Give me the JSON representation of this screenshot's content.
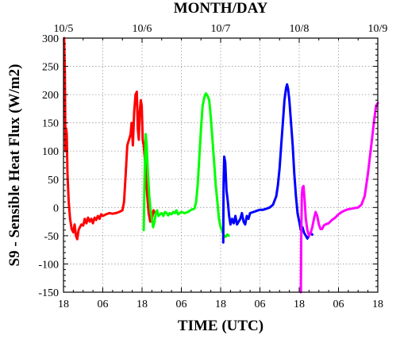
{
  "chart_data": {
    "type": "line",
    "title": "",
    "xlabel": "TIME (UTC)",
    "x2label": "MONTH/DAY",
    "ylabel": "S9 - Sensible Heat Flux (W/m2)",
    "xlim": [
      0,
      96
    ],
    "ylim": [
      -150,
      300
    ],
    "grid": true,
    "legend": "none",
    "y_ticks": [
      "-150",
      "-100",
      "-50",
      "0",
      "50",
      "100",
      "150",
      "200",
      "250",
      "300"
    ],
    "x_ticks": [
      {
        "x": 0,
        "label": "18"
      },
      {
        "x": 12,
        "label": "06"
      },
      {
        "x": 24,
        "label": "18"
      },
      {
        "x": 36,
        "label": "06"
      },
      {
        "x": 48,
        "label": "18"
      },
      {
        "x": 60,
        "label": "06"
      },
      {
        "x": 72,
        "label": "18"
      },
      {
        "x": 84,
        "label": "06"
      },
      {
        "x": 96,
        "label": "18"
      }
    ],
    "x2_ticks": [
      {
        "x": 0,
        "label": "10/5"
      },
      {
        "x": 24,
        "label": "10/6"
      },
      {
        "x": 48,
        "label": "10/7"
      },
      {
        "x": 72,
        "label": "10/8"
      },
      {
        "x": 96,
        "label": "10/9"
      }
    ],
    "series": [
      {
        "color": "#ff0000",
        "points": [
          [
            0.2,
            300
          ],
          [
            0.4,
            240
          ],
          [
            0.6,
            100
          ],
          [
            0.8,
            140
          ],
          [
            1.0,
            130
          ],
          [
            1.2,
            60
          ],
          [
            1.6,
            10
          ],
          [
            2.0,
            -20
          ],
          [
            2.5,
            -38
          ],
          [
            3.0,
            -44
          ],
          [
            3.4,
            -30
          ],
          [
            3.8,
            -50
          ],
          [
            4.2,
            -56
          ],
          [
            4.6,
            -40
          ],
          [
            5.0,
            -35
          ],
          [
            5.5,
            -30
          ],
          [
            6.0,
            -32
          ],
          [
            6.5,
            -20
          ],
          [
            7.0,
            -28
          ],
          [
            7.5,
            -18
          ],
          [
            8.0,
            -25
          ],
          [
            8.5,
            -20
          ],
          [
            9.0,
            -28
          ],
          [
            9.5,
            -18
          ],
          [
            10.0,
            -22
          ],
          [
            10.5,
            -15
          ],
          [
            11.0,
            -20
          ],
          [
            11.5,
            -12
          ],
          [
            12.0,
            -15
          ],
          [
            13.0,
            -12
          ],
          [
            14.0,
            -10
          ],
          [
            15.0,
            -11
          ],
          [
            16.0,
            -10
          ],
          [
            17.0,
            -8
          ],
          [
            18.0,
            -5
          ],
          [
            18.5,
            10
          ],
          [
            19.0,
            60
          ],
          [
            19.5,
            110
          ],
          [
            20.0,
            120
          ],
          [
            20.5,
            130
          ],
          [
            20.8,
            150
          ],
          [
            21.2,
            110
          ],
          [
            21.6,
            170
          ],
          [
            22.0,
            200
          ],
          [
            22.4,
            205
          ],
          [
            22.7,
            140
          ],
          [
            23.0,
            120
          ],
          [
            23.3,
            170
          ],
          [
            23.6,
            190
          ],
          [
            23.9,
            180
          ],
          [
            24.2,
            120
          ],
          [
            24.5,
            110
          ],
          [
            24.8,
            90
          ],
          [
            25.2,
            60
          ],
          [
            25.6,
            20
          ],
          [
            26.0,
            -10
          ],
          [
            26.5,
            -25
          ],
          [
            27.0,
            -20
          ],
          [
            27.5,
            -5
          ],
          [
            28.0,
            -10
          ],
          [
            28.5,
            -8
          ]
        ]
      },
      {
        "color": "#00ff00",
        "points": [
          [
            24.5,
            -40
          ],
          [
            24.8,
            60
          ],
          [
            25.1,
            130
          ],
          [
            25.4,
            110
          ],
          [
            25.8,
            60
          ],
          [
            26.2,
            20
          ],
          [
            26.6,
            -5
          ],
          [
            27.0,
            -20
          ],
          [
            27.4,
            -35
          ],
          [
            27.8,
            -25
          ],
          [
            28.2,
            -10
          ],
          [
            28.6,
            -5
          ],
          [
            29.0,
            -15
          ],
          [
            29.5,
            -12
          ],
          [
            30.0,
            -10
          ],
          [
            30.5,
            -15
          ],
          [
            31.0,
            -8
          ],
          [
            31.5,
            -10
          ],
          [
            32.0,
            -14
          ],
          [
            32.5,
            -10
          ],
          [
            33.0,
            -12
          ],
          [
            33.5,
            -8
          ],
          [
            34.0,
            -10
          ],
          [
            34.5,
            -5
          ],
          [
            35.0,
            -12
          ],
          [
            36.0,
            -8
          ],
          [
            37.0,
            -10
          ],
          [
            38.0,
            -8
          ],
          [
            39.0,
            -4
          ],
          [
            40.0,
            -2
          ],
          [
            40.5,
            10
          ],
          [
            41.0,
            40
          ],
          [
            41.5,
            90
          ],
          [
            42.0,
            140
          ],
          [
            42.5,
            180
          ],
          [
            43.0,
            195
          ],
          [
            43.5,
            202
          ],
          [
            44.0,
            198
          ],
          [
            44.5,
            190
          ],
          [
            45.0,
            160
          ],
          [
            45.5,
            120
          ],
          [
            46.0,
            80
          ],
          [
            46.5,
            40
          ],
          [
            47.0,
            10
          ],
          [
            47.5,
            -20
          ],
          [
            48.0,
            -35
          ],
          [
            48.5,
            -42
          ],
          [
            49.0,
            -50
          ],
          [
            49.5,
            -52
          ],
          [
            50.0,
            -48
          ],
          [
            50.5,
            -50
          ]
        ]
      },
      {
        "color": "#0000ff",
        "points": [
          [
            48.8,
            -62
          ],
          [
            48.9,
            40
          ],
          [
            49.1,
            90
          ],
          [
            49.4,
            80
          ],
          [
            49.8,
            30
          ],
          [
            50.2,
            10
          ],
          [
            50.6,
            -15
          ],
          [
            51.0,
            -30
          ],
          [
            51.5,
            -20
          ],
          [
            52.0,
            -28
          ],
          [
            52.5,
            -15
          ],
          [
            53.0,
            -30
          ],
          [
            53.5,
            -25
          ],
          [
            54.0,
            -20
          ],
          [
            54.5,
            -10
          ],
          [
            55.0,
            -25
          ],
          [
            55.5,
            -30
          ],
          [
            56.0,
            -15
          ],
          [
            56.5,
            -20
          ],
          [
            57.0,
            -10
          ],
          [
            58.0,
            -8
          ],
          [
            59.0,
            -6
          ],
          [
            60.0,
            -4
          ],
          [
            61.0,
            -4
          ],
          [
            62.0,
            -2
          ],
          [
            63.0,
            0
          ],
          [
            64.0,
            5
          ],
          [
            65.0,
            20
          ],
          [
            65.5,
            40
          ],
          [
            66.0,
            70
          ],
          [
            66.5,
            110
          ],
          [
            67.0,
            150
          ],
          [
            67.5,
            190
          ],
          [
            68.0,
            212
          ],
          [
            68.3,
            218
          ],
          [
            68.6,
            210
          ],
          [
            69.0,
            190
          ],
          [
            69.5,
            150
          ],
          [
            70.0,
            110
          ],
          [
            70.5,
            60
          ],
          [
            71.0,
            20
          ],
          [
            71.5,
            -10
          ],
          [
            72.0,
            -25
          ],
          [
            72.5,
            -40
          ],
          [
            73.0,
            -35
          ],
          [
            73.5,
            -45
          ],
          [
            74.0,
            -50
          ],
          [
            74.5,
            -55
          ],
          [
            75.0,
            -50
          ],
          [
            75.5,
            -45
          ],
          [
            76.0,
            -48
          ]
        ]
      },
      {
        "color": "#ff00ff",
        "points": [
          [
            72.5,
            -150
          ],
          [
            72.6,
            -60
          ],
          [
            72.8,
            20
          ],
          [
            73.0,
            35
          ],
          [
            73.3,
            38
          ],
          [
            73.7,
            10
          ],
          [
            74.0,
            -20
          ],
          [
            74.5,
            -40
          ],
          [
            75.0,
            -50
          ],
          [
            75.5,
            -45
          ],
          [
            76.0,
            -35
          ],
          [
            76.5,
            -20
          ],
          [
            77.0,
            -8
          ],
          [
            77.5,
            -15
          ],
          [
            78.0,
            -30
          ],
          [
            78.5,
            -38
          ],
          [
            79.0,
            -38
          ],
          [
            79.5,
            -32
          ],
          [
            80.0,
            -30
          ],
          [
            81.0,
            -28
          ],
          [
            82.0,
            -22
          ],
          [
            83.0,
            -18
          ],
          [
            84.0,
            -12
          ],
          [
            85.0,
            -8
          ],
          [
            86.0,
            -5
          ],
          [
            87.0,
            -3
          ],
          [
            88.0,
            -2
          ],
          [
            89.0,
            -1
          ],
          [
            90.0,
            0
          ],
          [
            91.0,
            5
          ],
          [
            92.0,
            20
          ],
          [
            93.0,
            60
          ],
          [
            94.0,
            110
          ],
          [
            95.0,
            160
          ],
          [
            95.5,
            180
          ],
          [
            96.0,
            185
          ]
        ]
      }
    ]
  }
}
